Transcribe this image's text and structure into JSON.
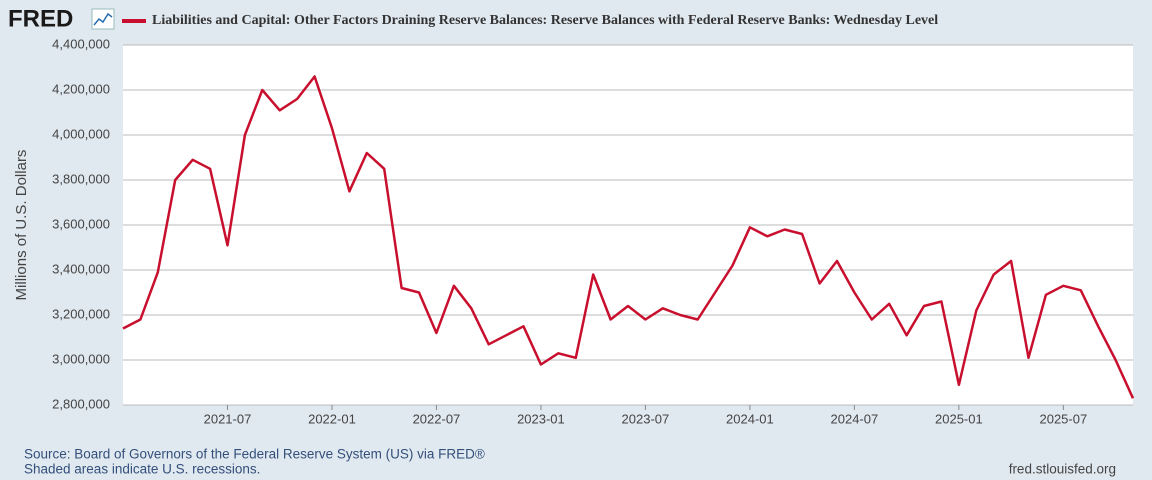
{
  "logo": "FRED",
  "chart_data": {
    "type": "line",
    "title": "Liabilities and Capital: Other Factors Draining Reserve Balances: Reserve Balances with Federal Reserve Banks: Wednesday Level",
    "y_label": "Millions of U.S. Dollars",
    "x": [
      "2021-01",
      "2021-02",
      "2021-03",
      "2021-04",
      "2021-05",
      "2021-06",
      "2021-07",
      "2021-08",
      "2021-09",
      "2021-10",
      "2021-11",
      "2021-12",
      "2022-01",
      "2022-02",
      "2022-03",
      "2022-04",
      "2022-05",
      "2022-06",
      "2022-07",
      "2022-08",
      "2022-09",
      "2022-10",
      "2022-11",
      "2022-12",
      "2023-01",
      "2023-02",
      "2023-03",
      "2023-04",
      "2023-05",
      "2023-06",
      "2023-07",
      "2023-08",
      "2023-09",
      "2023-10",
      "2023-11",
      "2023-12",
      "2024-01",
      "2024-02",
      "2024-03",
      "2024-04",
      "2024-05",
      "2024-06",
      "2024-07",
      "2024-08",
      "2024-09",
      "2024-10",
      "2024-11",
      "2024-12",
      "2025-01",
      "2025-02",
      "2025-03",
      "2025-04",
      "2025-05",
      "2025-06",
      "2025-07",
      "2025-08",
      "2025-09",
      "2025-10",
      "2025-11"
    ],
    "series": [
      {
        "name": "Liabilities and Capital: Other Factors Draining Reserve Balances: Reserve Balances with Federal Reserve Banks: Wednesday Level",
        "color": "#c8102e",
        "values": [
          3140000,
          3180000,
          3390000,
          3800000,
          3890000,
          3850000,
          3510000,
          4000000,
          4200000,
          4110000,
          4160000,
          4260000,
          4030000,
          3750000,
          3920000,
          3850000,
          3320000,
          3300000,
          3120000,
          3330000,
          3230000,
          3070000,
          3110000,
          3150000,
          2980000,
          3030000,
          3010000,
          3380000,
          3180000,
          3240000,
          3180000,
          3230000,
          3200000,
          3180000,
          3300000,
          3420000,
          3590000,
          3550000,
          3580000,
          3560000,
          3340000,
          3440000,
          3300000,
          3180000,
          3250000,
          3110000,
          3240000,
          3260000,
          2890000,
          3220000,
          3380000,
          3440000,
          3010000,
          3290000,
          3330000,
          3310000,
          3150000,
          3000000,
          2830000
        ]
      }
    ],
    "xlim": [
      "2021-01",
      "2025-11"
    ],
    "xticks": [
      "2021-07",
      "2022-01",
      "2022-07",
      "2023-01",
      "2023-07",
      "2024-01",
      "2024-07",
      "2025-01",
      "2025-07"
    ],
    "ylim": [
      2800000,
      4400000
    ],
    "yticks": [
      {
        "value": 2800000,
        "label": "2,800,000"
      },
      {
        "value": 3000000,
        "label": "3,000,000"
      },
      {
        "value": 3200000,
        "label": "3,200,000"
      },
      {
        "value": 3400000,
        "label": "3,400,000"
      },
      {
        "value": 3600000,
        "label": "3,600,000"
      },
      {
        "value": 3800000,
        "label": "3,800,000"
      },
      {
        "value": 4000000,
        "label": "4,000,000"
      },
      {
        "value": 4200000,
        "label": "4,200,000"
      },
      {
        "value": 4400000,
        "label": "4,400,000"
      }
    ],
    "grid": true
  },
  "footer": {
    "source": "Source: Board of Governors of the Federal Reserve System (US) via FRED®",
    "note": "Shaded areas indicate U.S. recessions.",
    "url": "fred.stlouisfed.org"
  }
}
